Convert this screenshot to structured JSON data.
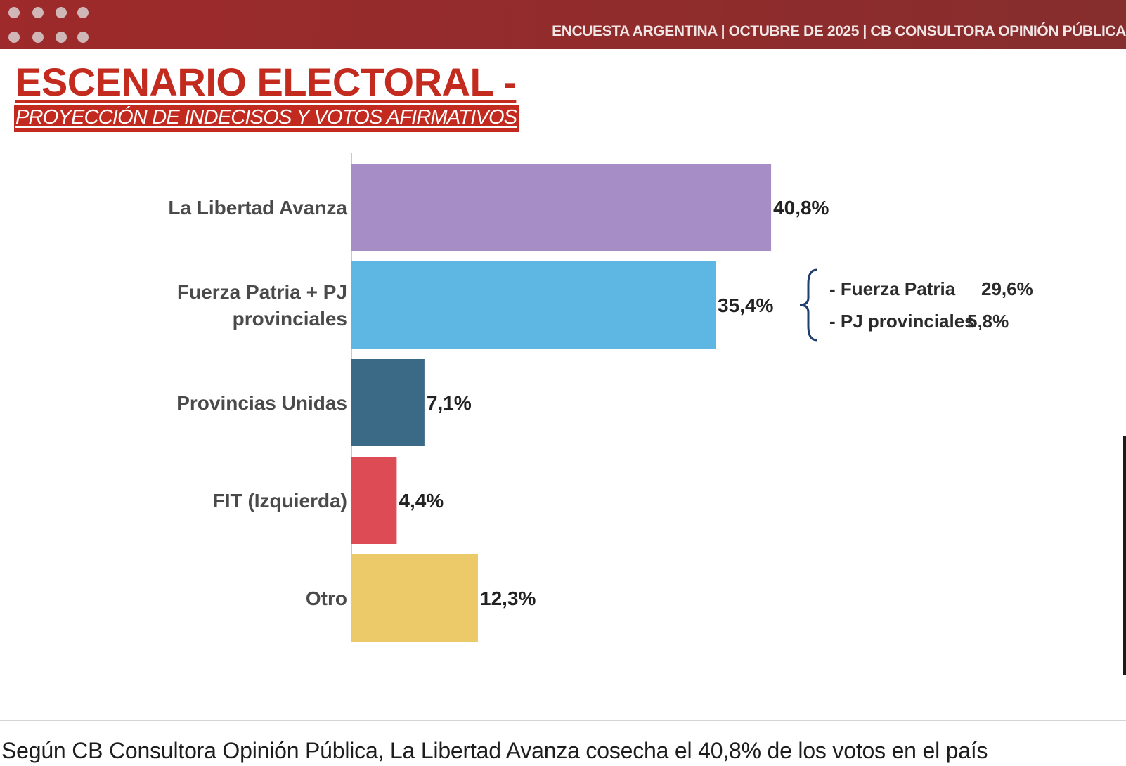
{
  "header": {
    "source": "ENCUESTA ARGENTINA | OCTUBRE DE 2025 | CB CONSULTORA OPINIÓN PÚBLICA"
  },
  "chart_data": {
    "type": "bar",
    "orientation": "horizontal",
    "title": "ESCENARIO ELECTORAL -",
    "subtitle": "PROYECCIÓN DE INDECISOS Y VOTOS AFIRMATIVOS",
    "categories": [
      [
        "La Libertad Avanza"
      ],
      [
        "Fuerza Patria + PJ",
        "provinciales"
      ],
      [
        "Provincias Unidas"
      ],
      [
        "FIT (Izquierda)"
      ],
      [
        "Otro"
      ]
    ],
    "values": [
      40.8,
      35.4,
      7.1,
      4.4,
      12.3
    ],
    "value_labels": [
      "40,8%",
      "35,4%",
      "7,1%",
      "4,4%",
      "12,3%"
    ],
    "colors": [
      "#a78dc6",
      "#5eb7e3",
      "#3b6a87",
      "#dd4b55",
      "#edca69"
    ],
    "breakdown": {
      "category_index": 1,
      "items": [
        "- Fuerza Patria",
        "- PJ provinciales"
      ],
      "values": [
        29.6,
        5.8
      ],
      "value_labels": [
        "29,6%",
        "5,8%"
      ]
    },
    "xlim": [
      0,
      41
    ],
    "grid": false,
    "legend": "none"
  },
  "caption": "Según CB Consultora Opinión Pública, La Libertad Avanza cosecha el 40,8% de los votos en el país"
}
